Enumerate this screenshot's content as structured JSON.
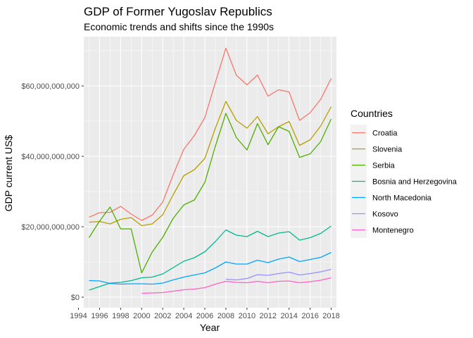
{
  "chart_data": {
    "type": "line",
    "title": "GDP of Former Yugoslav Republics",
    "subtitle": "Economic trends and shifts since the 1990s",
    "xlabel": "Year",
    "ylabel": "GDP current US$",
    "xlim": [
      1994.5,
      2018.5
    ],
    "ylim": [
      -3000000000,
      74000000000
    ],
    "x_ticks": [
      1994,
      1996,
      1998,
      2000,
      2002,
      2004,
      2006,
      2008,
      2010,
      2012,
      2014,
      2016,
      2018
    ],
    "x_tick_labels": [
      "1994",
      "1996",
      "1998",
      "2000",
      "2002",
      "2004",
      "2006",
      "2008",
      "2010",
      "2012",
      "2014",
      "2016",
      "2018"
    ],
    "y_ticks": [
      0,
      20000000000,
      40000000000,
      60000000000
    ],
    "y_tick_labels": [
      "$0",
      "$20,000,000,000",
      "$40,000,000,000",
      "$60,000,000,000"
    ],
    "grid": true,
    "legend_title": "Countries",
    "legend_position": "right",
    "series": [
      {
        "name": "Croatia",
        "color": "#F8766D",
        "points": [
          [
            1995,
            22700000000
          ],
          [
            1996,
            24000000000
          ],
          [
            1997,
            24100000000
          ],
          [
            1998,
            25800000000
          ],
          [
            1999,
            23600000000
          ],
          [
            2000,
            21800000000
          ],
          [
            2001,
            23300000000
          ],
          [
            2002,
            27000000000
          ],
          [
            2003,
            34800000000
          ],
          [
            2004,
            42000000000
          ],
          [
            2005,
            45900000000
          ],
          [
            2006,
            51000000000
          ],
          [
            2007,
            61000000000
          ],
          [
            2008,
            70700000000
          ],
          [
            2009,
            63000000000
          ],
          [
            2010,
            60300000000
          ],
          [
            2011,
            63100000000
          ],
          [
            2012,
            57100000000
          ],
          [
            2013,
            58900000000
          ],
          [
            2014,
            58300000000
          ],
          [
            2015,
            50200000000
          ],
          [
            2016,
            52400000000
          ],
          [
            2017,
            56200000000
          ],
          [
            2018,
            62100000000
          ]
        ]
      },
      {
        "name": "Slovenia",
        "color": "#B79F00",
        "points": [
          [
            1995,
            21300000000
          ],
          [
            1996,
            21500000000
          ],
          [
            1997,
            20800000000
          ],
          [
            1998,
            22100000000
          ],
          [
            1999,
            22600000000
          ],
          [
            2000,
            20300000000
          ],
          [
            2001,
            20800000000
          ],
          [
            2002,
            23400000000
          ],
          [
            2003,
            29100000000
          ],
          [
            2004,
            34500000000
          ],
          [
            2005,
            36200000000
          ],
          [
            2006,
            39400000000
          ],
          [
            2007,
            48000000000
          ],
          [
            2008,
            55600000000
          ],
          [
            2009,
            50200000000
          ],
          [
            2010,
            48000000000
          ],
          [
            2011,
            51300000000
          ],
          [
            2012,
            46400000000
          ],
          [
            2013,
            48400000000
          ],
          [
            2014,
            49900000000
          ],
          [
            2015,
            43100000000
          ],
          [
            2016,
            44700000000
          ],
          [
            2017,
            48600000000
          ],
          [
            2018,
            54100000000
          ]
        ]
      },
      {
        "name": "Serbia",
        "color": "#4DAF00",
        "points": [
          [
            1995,
            16900000000
          ],
          [
            1996,
            21600000000
          ],
          [
            1997,
            25600000000
          ],
          [
            1998,
            19400000000
          ],
          [
            1999,
            19400000000
          ],
          [
            2000,
            6900000000
          ],
          [
            2001,
            12800000000
          ],
          [
            2002,
            17000000000
          ],
          [
            2003,
            22400000000
          ],
          [
            2004,
            26200000000
          ],
          [
            2005,
            27600000000
          ],
          [
            2006,
            32600000000
          ],
          [
            2007,
            42900000000
          ],
          [
            2008,
            52200000000
          ],
          [
            2009,
            45300000000
          ],
          [
            2010,
            41800000000
          ],
          [
            2011,
            49300000000
          ],
          [
            2012,
            43300000000
          ],
          [
            2013,
            48400000000
          ],
          [
            2014,
            47100000000
          ],
          [
            2015,
            39700000000
          ],
          [
            2016,
            40700000000
          ],
          [
            2017,
            44200000000
          ],
          [
            2018,
            50600000000
          ]
        ]
      },
      {
        "name": "Bosnia and Herzegovina",
        "color": "#00BA8E",
        "points": [
          [
            1995,
            2000000000
          ],
          [
            1996,
            3000000000
          ],
          [
            1997,
            4000000000
          ],
          [
            1998,
            4200000000
          ],
          [
            1999,
            4700000000
          ],
          [
            2000,
            5500000000
          ],
          [
            2001,
            5700000000
          ],
          [
            2002,
            6600000000
          ],
          [
            2003,
            8400000000
          ],
          [
            2004,
            10200000000
          ],
          [
            2005,
            11200000000
          ],
          [
            2006,
            12900000000
          ],
          [
            2007,
            15800000000
          ],
          [
            2008,
            19100000000
          ],
          [
            2009,
            17600000000
          ],
          [
            2010,
            17200000000
          ],
          [
            2011,
            18700000000
          ],
          [
            2012,
            17200000000
          ],
          [
            2013,
            18200000000
          ],
          [
            2014,
            18600000000
          ],
          [
            2015,
            16200000000
          ],
          [
            2016,
            16900000000
          ],
          [
            2017,
            18100000000
          ],
          [
            2018,
            20200000000
          ]
        ]
      },
      {
        "name": "North Macedonia",
        "color": "#00A5FF",
        "points": [
          [
            1995,
            4700000000
          ],
          [
            1996,
            4600000000
          ],
          [
            1997,
            3900000000
          ],
          [
            1998,
            3700000000
          ],
          [
            1999,
            3800000000
          ],
          [
            2000,
            3800000000
          ],
          [
            2001,
            3700000000
          ],
          [
            2002,
            4000000000
          ],
          [
            2003,
            4900000000
          ],
          [
            2004,
            5700000000
          ],
          [
            2005,
            6300000000
          ],
          [
            2006,
            6900000000
          ],
          [
            2007,
            8300000000
          ],
          [
            2008,
            10000000000
          ],
          [
            2009,
            9400000000
          ],
          [
            2010,
            9400000000
          ],
          [
            2011,
            10500000000
          ],
          [
            2012,
            9800000000
          ],
          [
            2013,
            10800000000
          ],
          [
            2014,
            11400000000
          ],
          [
            2015,
            10100000000
          ],
          [
            2016,
            10700000000
          ],
          [
            2017,
            11300000000
          ],
          [
            2018,
            12700000000
          ]
        ]
      },
      {
        "name": "Kosovo",
        "color": "#9590FF",
        "points": [
          [
            2008,
            5100000000
          ],
          [
            2009,
            4900000000
          ],
          [
            2010,
            5300000000
          ],
          [
            2011,
            6400000000
          ],
          [
            2012,
            6200000000
          ],
          [
            2013,
            6700000000
          ],
          [
            2014,
            7100000000
          ],
          [
            2015,
            6300000000
          ],
          [
            2016,
            6700000000
          ],
          [
            2017,
            7200000000
          ],
          [
            2018,
            7900000000
          ]
        ]
      },
      {
        "name": "Montenegro",
        "color": "#FF61C3",
        "points": [
          [
            2000,
            1100000000
          ],
          [
            2001,
            1200000000
          ],
          [
            2002,
            1300000000
          ],
          [
            2003,
            1700000000
          ],
          [
            2004,
            2100000000
          ],
          [
            2005,
            2300000000
          ],
          [
            2006,
            2700000000
          ],
          [
            2007,
            3700000000
          ],
          [
            2008,
            4500000000
          ],
          [
            2009,
            4200000000
          ],
          [
            2010,
            4100000000
          ],
          [
            2011,
            4500000000
          ],
          [
            2012,
            4100000000
          ],
          [
            2013,
            4500000000
          ],
          [
            2014,
            4600000000
          ],
          [
            2015,
            4100000000
          ],
          [
            2016,
            4400000000
          ],
          [
            2017,
            4800000000
          ],
          [
            2018,
            5500000000
          ]
        ]
      }
    ]
  }
}
